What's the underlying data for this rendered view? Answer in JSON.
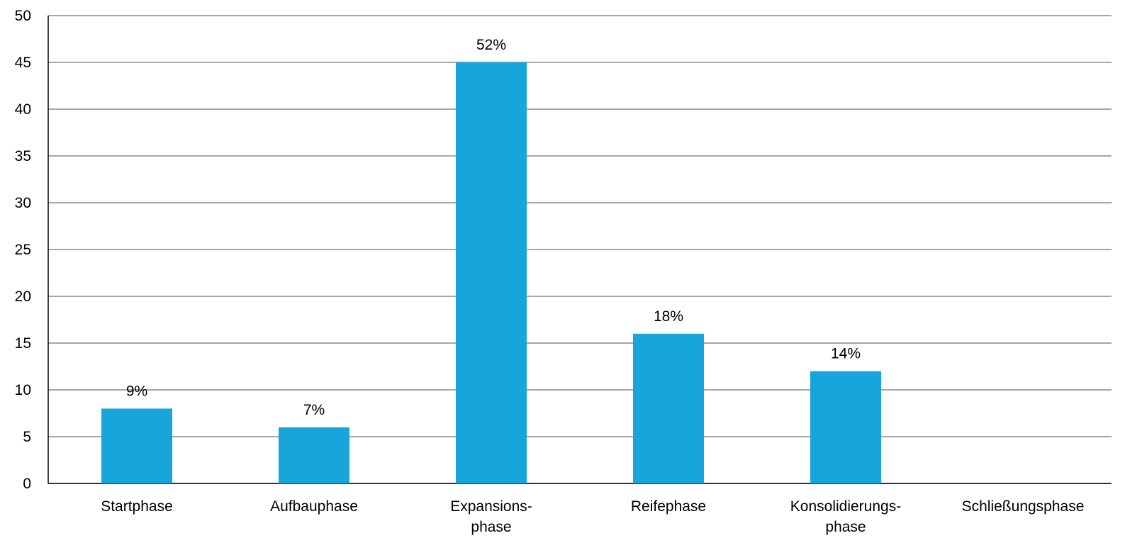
{
  "chart_data": {
    "type": "bar",
    "title": "",
    "xlabel": "",
    "ylabel": "",
    "ylim": [
      0,
      50
    ],
    "yticks": [
      0,
      5,
      10,
      15,
      20,
      25,
      30,
      35,
      40,
      45,
      50
    ],
    "grid": true,
    "legend": "none",
    "bar_color": "#16a6dc",
    "categories": [
      [
        "Startphase"
      ],
      [
        "Aufbauphase"
      ],
      [
        "Expansions-",
        "phase"
      ],
      [
        "Reifephase"
      ],
      [
        "Konsolidierungs-",
        "phase"
      ],
      [
        "Schließungsphase"
      ]
    ],
    "values": [
      8,
      6,
      45,
      16,
      12,
      0
    ],
    "data_labels": [
      "9%",
      "7%",
      "52%",
      "18%",
      "14%",
      ""
    ]
  }
}
